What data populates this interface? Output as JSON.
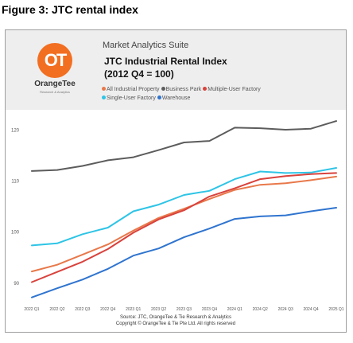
{
  "caption": "Figure 3: JTC rental index",
  "logo": {
    "mark": "OT",
    "name": "OrangeTee",
    "tagline": "Research & Analytics"
  },
  "header": {
    "suite": "Market Analytics Suite",
    "title": "JTC Industrial Rental Index\n(2012 Q4 = 100)"
  },
  "source": {
    "line1": "Source: JTC, OrangeTee & Tie Research & Analytics",
    "line2": "Copyright © OrangeTee & Tie Pte Ltd. All rights reserved"
  },
  "chart_data": {
    "type": "line",
    "title": "JTC Industrial Rental Index (2012 Q4 = 100)",
    "xlabel": "",
    "ylabel": "",
    "grid": false,
    "legend_position": "top",
    "x": [
      "2022 Q1",
      "2022 Q2",
      "2022 Q3",
      "2022 Q4",
      "2023 Q1",
      "2023 Q2",
      "2023 Q3",
      "2023 Q4",
      "2024 Q1",
      "2024 Q2",
      "2024 Q3",
      "2024 Q4",
      "2025 Q1"
    ],
    "yticks": [
      90,
      100,
      110,
      120
    ],
    "ylim": [
      87,
      124
    ],
    "series": [
      {
        "name": "All Industrial Property",
        "color": "#e8784a",
        "values": [
          92.3,
          93.6,
          95.6,
          97.6,
          100.3,
          102.8,
          104.6,
          106.5,
          108.3,
          109.3,
          109.6,
          110.2,
          110.9
        ]
      },
      {
        "name": "Business Park",
        "color": "#5c5c5c",
        "values": [
          112.0,
          112.2,
          113.0,
          114.1,
          114.7,
          116.1,
          117.6,
          117.9,
          120.5,
          120.4,
          120.1,
          120.3,
          121.8
        ]
      },
      {
        "name": "Multiple-User Factory",
        "color": "#d9423c",
        "values": [
          90.2,
          92.2,
          94.2,
          96.7,
          99.9,
          102.5,
          104.3,
          107.0,
          108.6,
          110.4,
          111.0,
          111.4,
          111.6
        ]
      },
      {
        "name": "Single-User Factory",
        "color": "#2ec4e6",
        "values": [
          97.4,
          97.8,
          99.6,
          100.9,
          104.1,
          105.4,
          107.3,
          108.1,
          110.4,
          111.9,
          111.6,
          111.7,
          112.6
        ]
      },
      {
        "name": "Warehouse",
        "color": "#2f74cf",
        "values": [
          87.2,
          89.0,
          90.7,
          92.8,
          95.4,
          96.8,
          99.0,
          100.7,
          102.6,
          103.1,
          103.3,
          104.1,
          104.8
        ]
      }
    ]
  }
}
